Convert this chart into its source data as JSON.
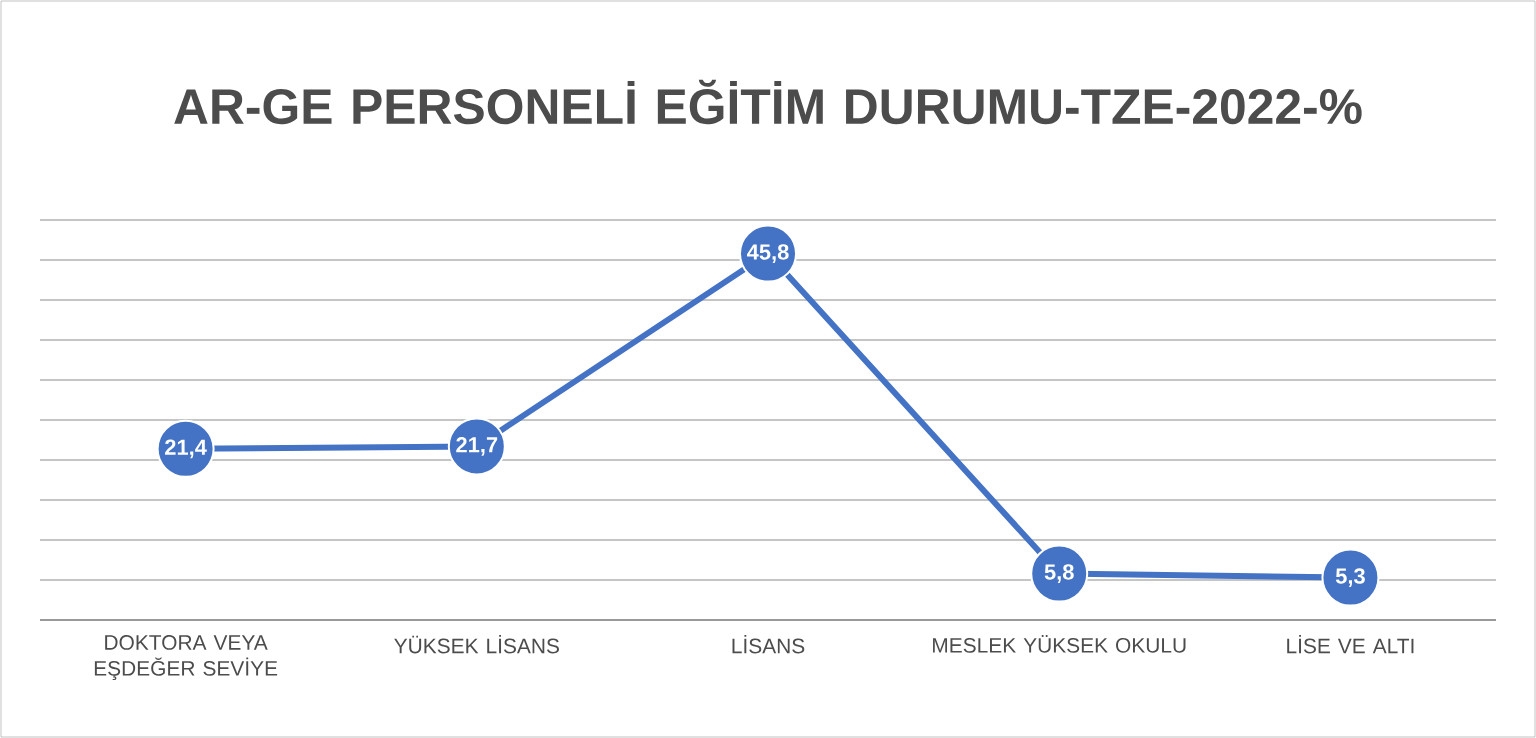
{
  "chart_data": {
    "type": "line",
    "title": "AR-GE PERSONELİ EĞİTİM DURUMU-TZE-2022-%",
    "categories": [
      "DOKTORA VEYA EŞDEĞER SEVİYE",
      "YÜKSEK LİSANS",
      "LİSANS",
      "MESLEK YÜKSEK OKULU",
      "LİSE VE ALTI"
    ],
    "series": [
      {
        "color": "#4472c4",
        "values": [
          21.4,
          21.7,
          45.8,
          5.8,
          5.3
        ],
        "value_labels": [
          "21,4",
          "21,7",
          "45,8",
          "5,8",
          "5,3"
        ]
      }
    ],
    "ylim": [
      0,
      50
    ],
    "yticks": [
      {
        "value": 0,
        "label": null
      },
      {
        "value": 5,
        "label": null
      },
      {
        "value": 10,
        "label": null
      },
      {
        "value": 15,
        "label": null
      },
      {
        "value": 20,
        "label": null
      },
      {
        "value": 25,
        "label": null
      },
      {
        "value": 30,
        "label": null
      },
      {
        "value": 35,
        "label": null
      },
      {
        "value": 40,
        "label": null
      },
      {
        "value": 45,
        "label": null
      },
      {
        "value": 50,
        "label": null
      }
    ],
    "tick_labels": "x",
    "grid": "y",
    "marker": "circle",
    "line_style": "solid"
  }
}
